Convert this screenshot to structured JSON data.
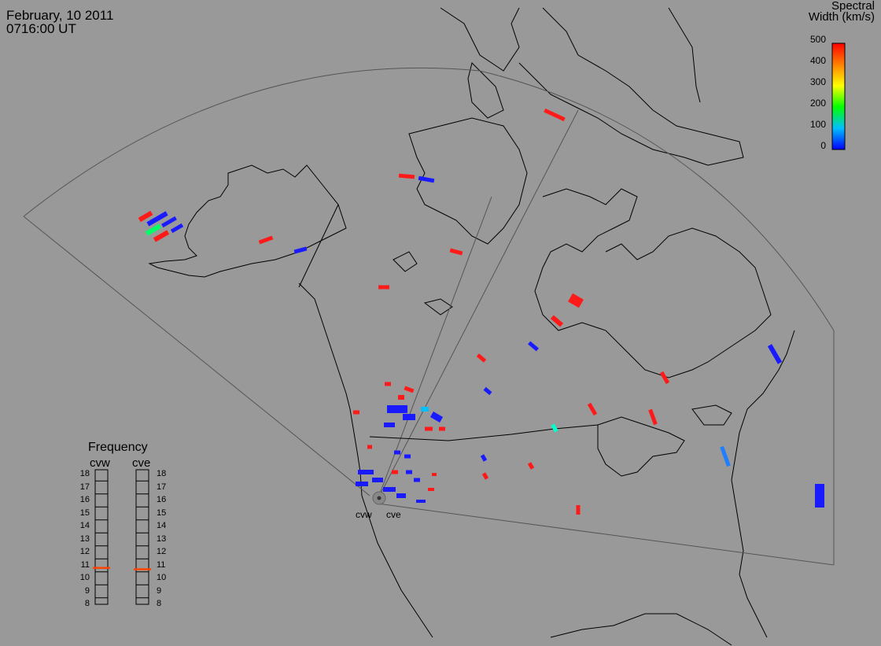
{
  "header": {
    "date": "February, 10 2011",
    "time": "0716:00 UT"
  },
  "colorbar": {
    "title_line1": "Spectral",
    "title_line2": "Width (km/s)",
    "ticks": [
      "500",
      "400",
      "300",
      "200",
      "100",
      "0"
    ],
    "min": 0,
    "max": 500
  },
  "frequency_panel": {
    "title": "Frequency",
    "columns": [
      {
        "label": "cvw",
        "value_mhz": 10.8
      },
      {
        "label": "cve",
        "value_mhz": 10.7
      }
    ],
    "ticks": [
      "18",
      "17",
      "16",
      "15",
      "14",
      "13",
      "12",
      "11",
      "10",
      "9",
      "8"
    ],
    "indicator_color": "#ff4400"
  },
  "radars": [
    {
      "label": "cvw"
    },
    {
      "label": "cve"
    }
  ],
  "colors": {
    "background": "#999999",
    "coastline": "#000000",
    "fov_outline": "#555555",
    "low": "#1a1aff",
    "high": "#ff1a1a"
  }
}
